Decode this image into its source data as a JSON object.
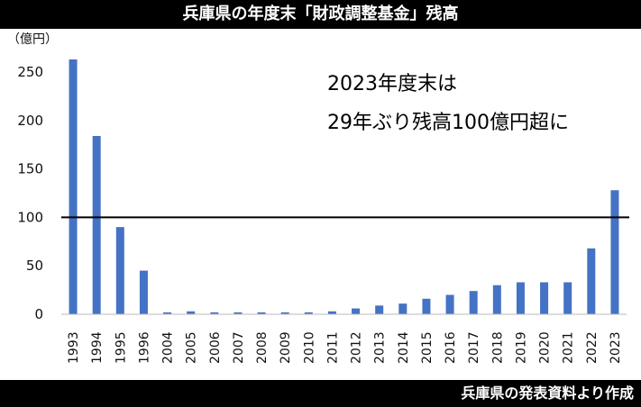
{
  "header": {
    "title": "兵庫県の年度末「財政調整基金」残高"
  },
  "footer": {
    "source": "兵庫県の発表資料より作成"
  },
  "chart_data": {
    "type": "bar",
    "ylabel": "（億円）",
    "ylim": [
      0,
      250
    ],
    "yticks": [
      0,
      50,
      100,
      150,
      200,
      250
    ],
    "categories": [
      "1993",
      "1994",
      "1995",
      "1996",
      "2004",
      "2005",
      "2006",
      "2007",
      "2008",
      "2009",
      "2010",
      "2011",
      "2012",
      "2013",
      "2014",
      "2015",
      "2016",
      "2017",
      "2018",
      "2019",
      "2020",
      "2021",
      "2022",
      "2023"
    ],
    "values": [
      263,
      184,
      90,
      45,
      2,
      3,
      2,
      2,
      2,
      2,
      2,
      3,
      6,
      9,
      11,
      16,
      20,
      24,
      30,
      33,
      33,
      33,
      68,
      128
    ],
    "reference_line": 100,
    "bar_color": "#4472C4",
    "annotation": [
      "2023年度末は",
      "29年ぶり残高100億円超に"
    ]
  }
}
